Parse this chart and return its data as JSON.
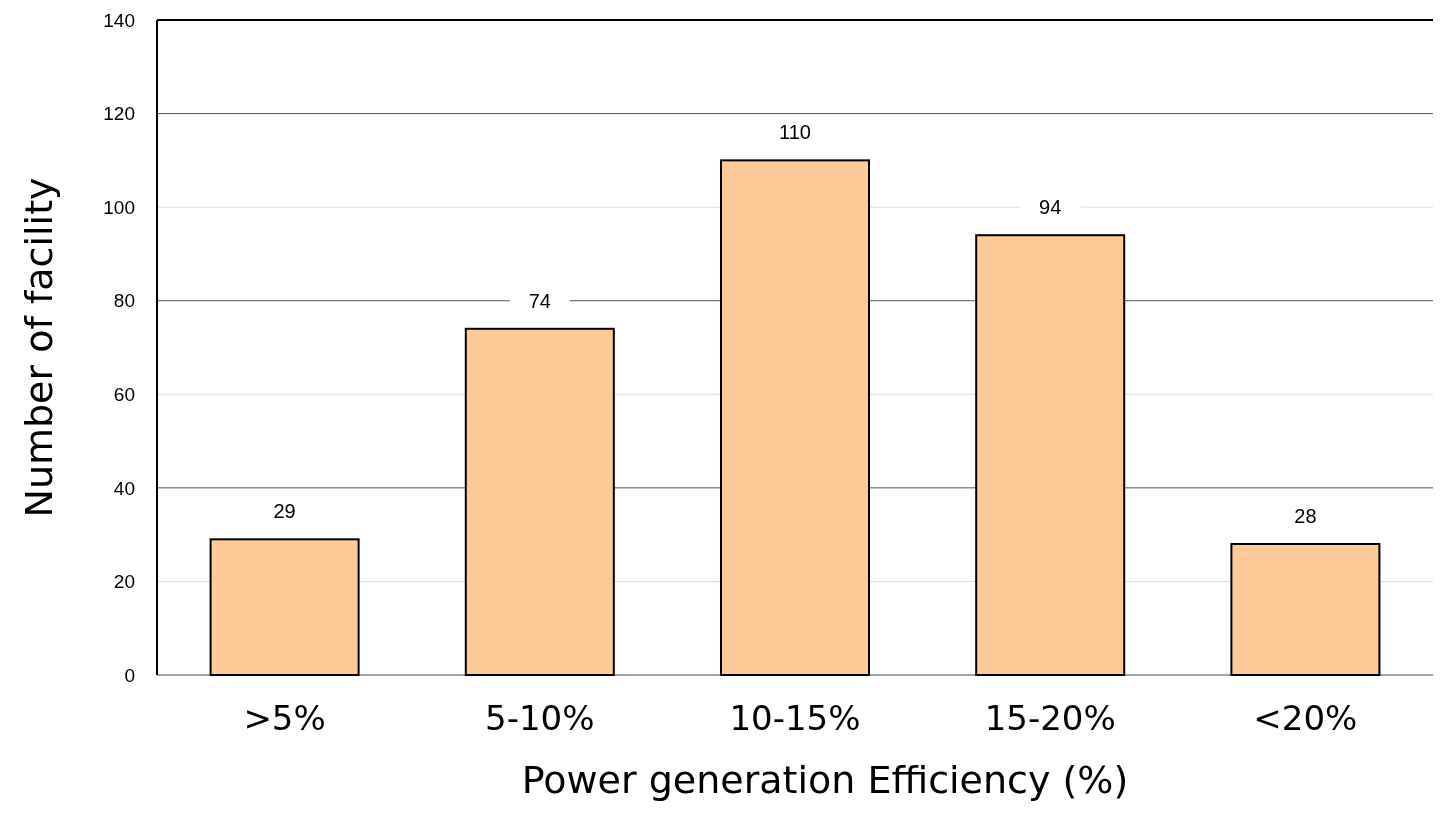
{
  "chart_data": {
    "type": "bar",
    "xlabel": "Power generation Efficiency (%)",
    "ylabel": "Number of facility",
    "categories": [
      ">5%",
      "5-10%",
      "10-15%",
      "15-20%",
      "<20%"
    ],
    "values": [
      29,
      74,
      110,
      94,
      28
    ],
    "color": "#fdca98",
    "ylim": [
      0,
      140
    ],
    "yticks": [
      0,
      20,
      40,
      60,
      80,
      100,
      120,
      140
    ],
    "grid": "y",
    "data_labels": true
  }
}
